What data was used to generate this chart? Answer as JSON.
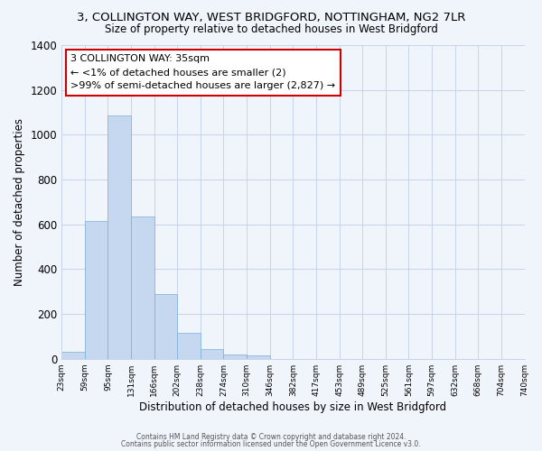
{
  "title": "3, COLLINGTON WAY, WEST BRIDGFORD, NOTTINGHAM, NG2 7LR",
  "subtitle": "Size of property relative to detached houses in West Bridgford",
  "xlabel": "Distribution of detached houses by size in West Bridgford",
  "ylabel": "Number of detached properties",
  "bar_values": [
    30,
    615,
    1085,
    635,
    290,
    115,
    45,
    20,
    15,
    0,
    0,
    0,
    0,
    0,
    0,
    0,
    0,
    0,
    0,
    0
  ],
  "bin_labels": [
    "23sqm",
    "59sqm",
    "95sqm",
    "131sqm",
    "166sqm",
    "202sqm",
    "238sqm",
    "274sqm",
    "310sqm",
    "346sqm",
    "382sqm",
    "417sqm",
    "453sqm",
    "489sqm",
    "525sqm",
    "561sqm",
    "597sqm",
    "632sqm",
    "668sqm",
    "704sqm",
    "740sqm"
  ],
  "bar_color": "#c5d8f0",
  "bar_edge_color": "#7aafd4",
  "annotation_box_text": "3 COLLINGTON WAY: 35sqm\n← <1% of detached houses are smaller (2)\n>99% of semi-detached houses are larger (2,827) →",
  "annotation_box_color": "#ffffff",
  "annotation_box_edge_color": "#cc0000",
  "ylim": [
    0,
    1400
  ],
  "yticks": [
    0,
    200,
    400,
    600,
    800,
    1000,
    1200,
    1400
  ],
  "bg_color": "#f0f4fb",
  "plot_bg_color": "#f0f4fb",
  "grid_color": "#c8d4e8",
  "footer_line1": "Contains HM Land Registry data © Crown copyright and database right 2024.",
  "footer_line2": "Contains public sector information licensed under the Open Government Licence v3.0."
}
